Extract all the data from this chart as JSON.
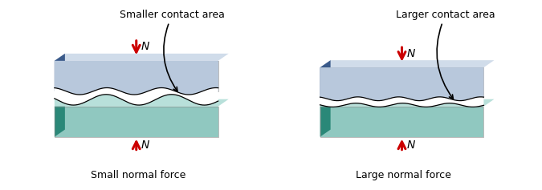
{
  "fig_width": 6.75,
  "fig_height": 2.37,
  "dpi": 100,
  "left_label": "Small normal force",
  "right_label": "Large normal force",
  "left_annotation": "Smaller contact area",
  "right_annotation": "Larger contact area",
  "N_label": "N",
  "top_block_color_face": "#b8c8dc",
  "top_block_color_side": "#3a5a8a",
  "top_block_color_top": "#d0dcea",
  "bottom_block_color_face": "#90c8c0",
  "bottom_block_color_side": "#2a8878",
  "bottom_block_color_top": "#b8e0da",
  "wave_teal": "#3aaa9a",
  "wave_white": "#e8f4f2",
  "arrow_color": "#cc0000",
  "text_color": "#000000",
  "label_fontsize": 9,
  "annotation_fontsize": 9,
  "N_fontsize": 10
}
